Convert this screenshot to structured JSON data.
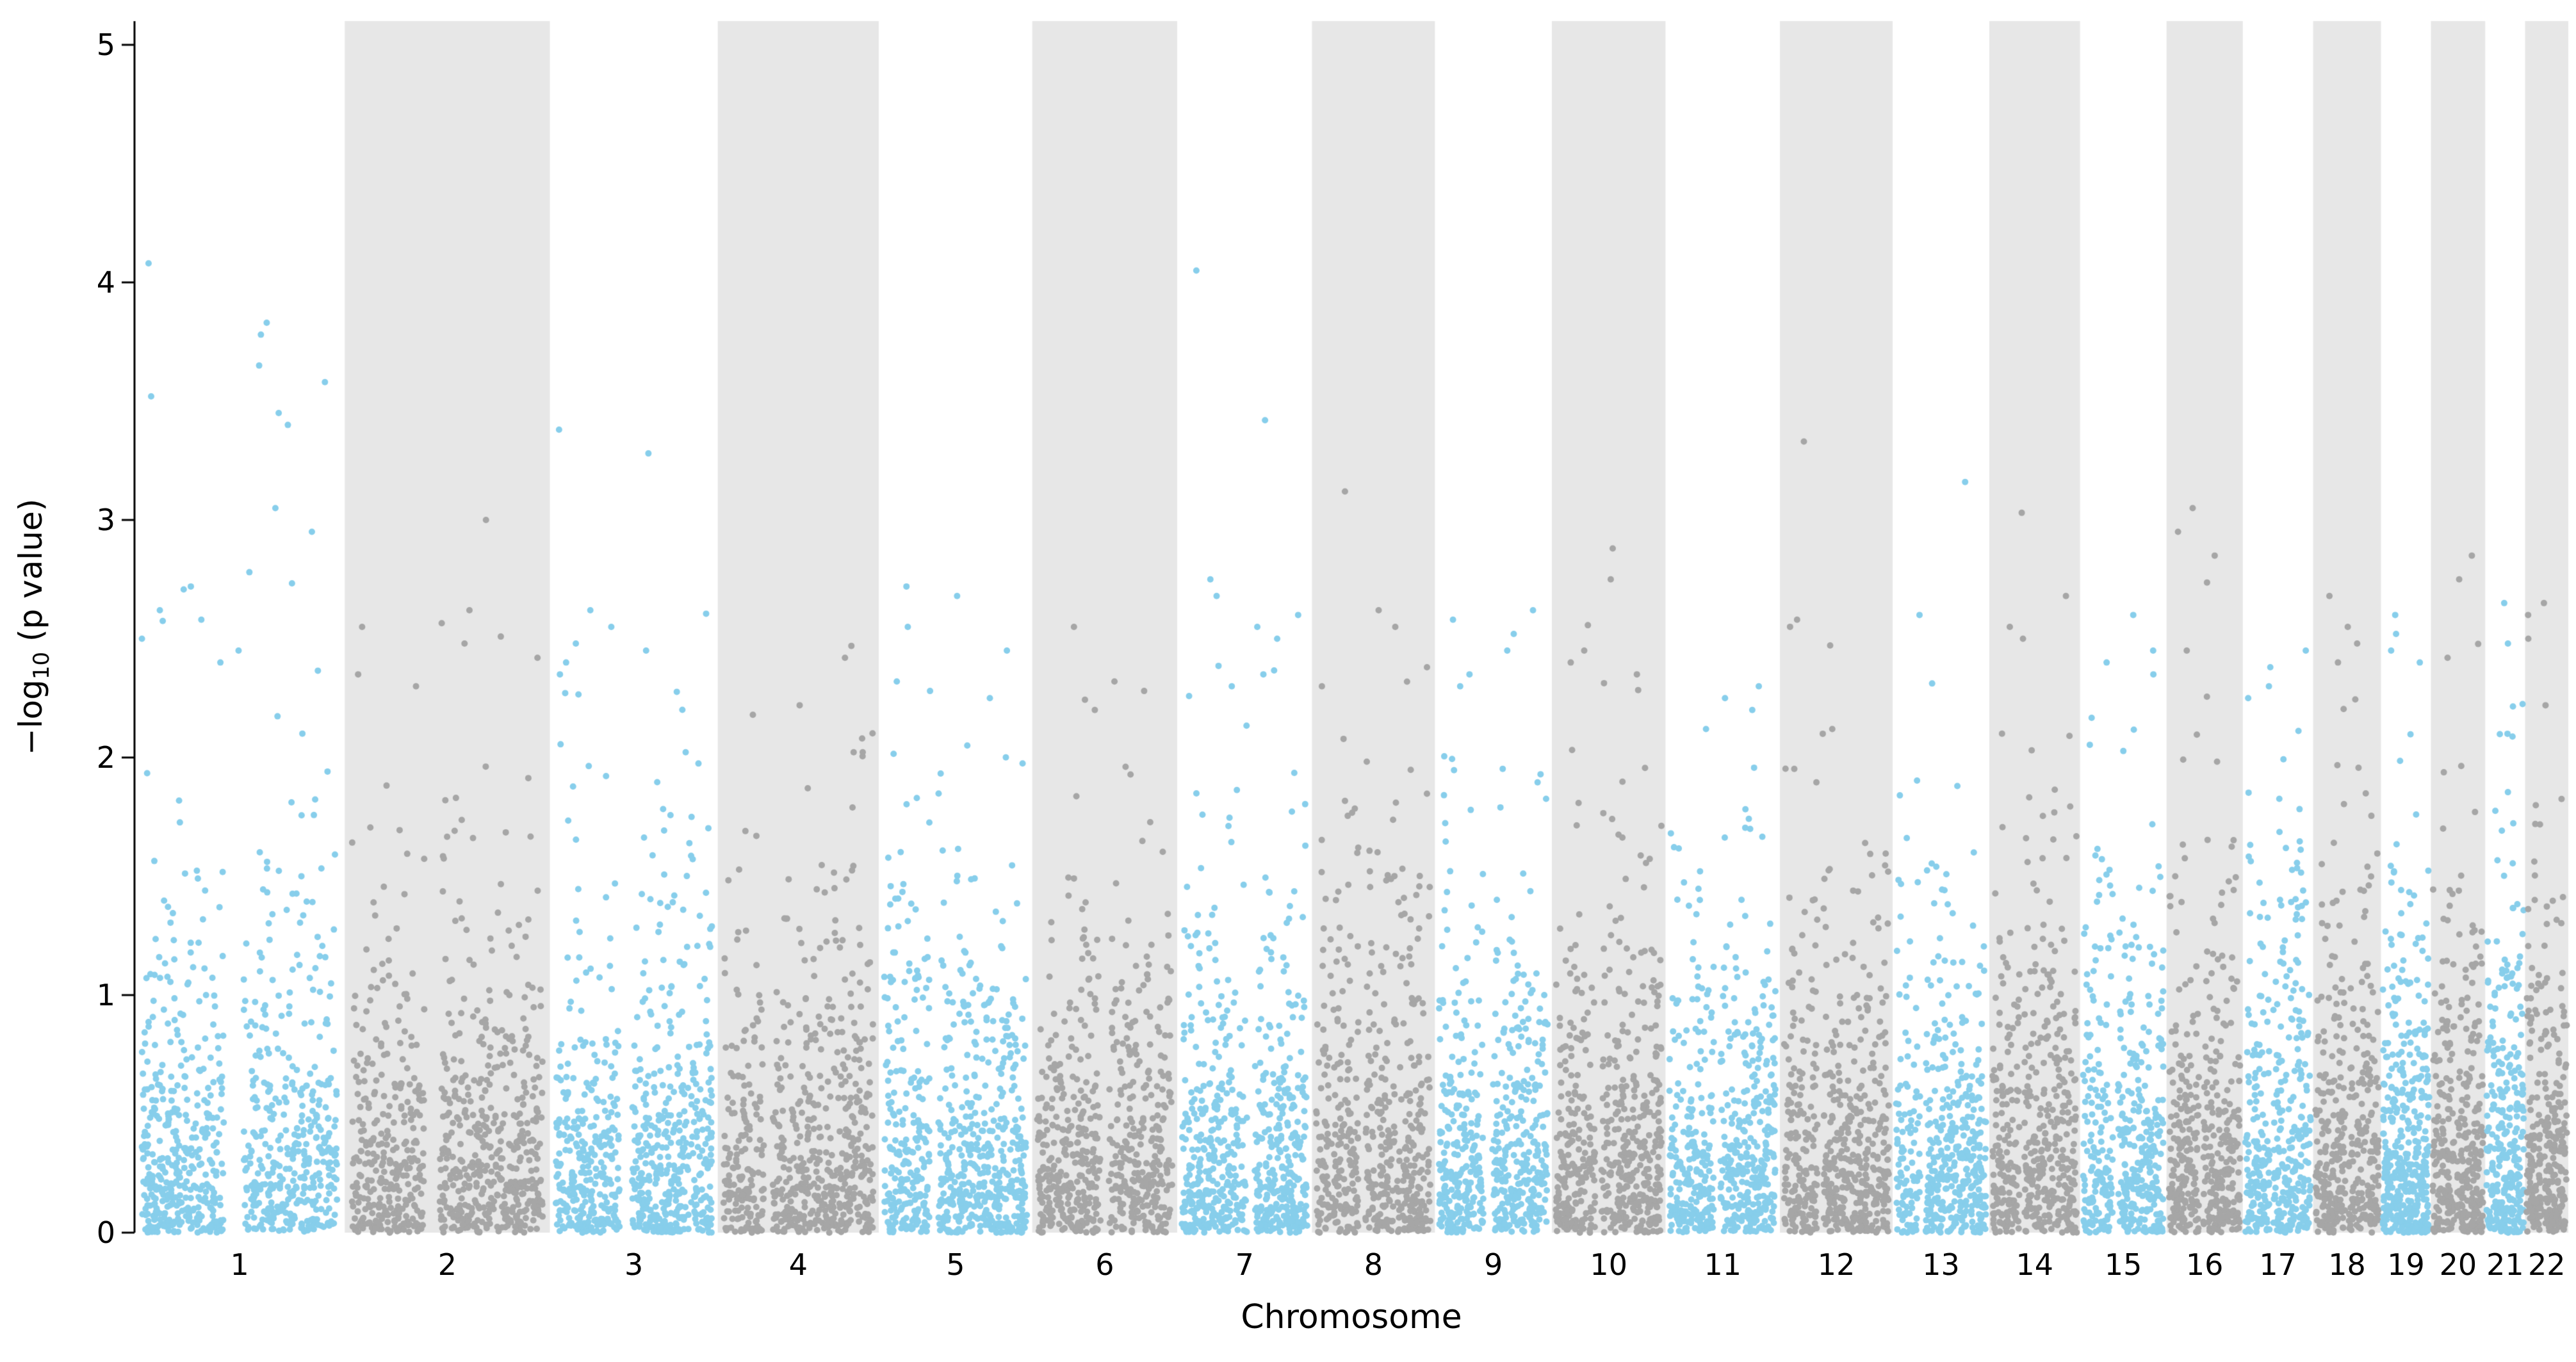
{
  "chart_data": {
    "type": "scatter",
    "variant": "manhattan",
    "title": "",
    "xlabel": "Chromosome",
    "ylabel": "−log10 (p value)",
    "ylabel_parts": {
      "pre": "−log",
      "sub": "10",
      "post": " (p value)"
    },
    "ylim": [
      0,
      5.1
    ],
    "yticks": [
      "0",
      "1",
      "2",
      "3",
      "4",
      "5"
    ],
    "grid": false,
    "legend": "none",
    "colors": {
      "odd_chromosome_points": "#87CEEB",
      "even_chromosome_points": "#a6a6a6",
      "even_chromosome_band": "#e7e7e7",
      "axis": "#000000",
      "background": "#ffffff"
    },
    "point_radius": 5,
    "chromosomes": [
      {
        "label": "1",
        "rel_width": 248,
        "n_points": 900,
        "max": 4.08,
        "peaks": [
          4.08,
          3.83,
          3.78,
          3.65,
          3.58,
          3.52,
          3.45,
          3.4,
          3.05,
          2.95,
          2.78,
          2.72,
          2.62,
          2.58,
          2.5,
          2.45,
          2.4
        ],
        "gap": [
          0.47,
          0.05
        ]
      },
      {
        "label": "2",
        "rel_width": 242,
        "n_points": 850,
        "max": 3.0,
        "peaks": [
          3.0,
          2.62,
          2.55,
          2.48,
          2.42,
          2.35,
          2.3
        ],
        "gap": [
          0.42,
          0.04
        ]
      },
      {
        "label": "3",
        "rel_width": 198,
        "n_points": 800,
        "max": 3.38,
        "peaks": [
          3.38,
          3.28,
          2.62,
          2.55,
          2.48,
          2.45,
          2.4,
          2.35
        ],
        "gap": [
          0.45,
          0.04
        ]
      },
      {
        "label": "4",
        "rel_width": 190,
        "n_points": 680,
        "max": 2.47,
        "peaks": [
          2.47,
          2.42,
          2.22,
          2.18
        ],
        "gap": [
          0.3,
          0.03
        ]
      },
      {
        "label": "5",
        "rel_width": 181,
        "n_points": 750,
        "max": 2.72,
        "peaks": [
          2.72,
          2.68,
          2.55,
          2.45,
          2.32,
          2.28,
          2.25
        ],
        "gap": [
          0.35,
          0.03
        ]
      },
      {
        "label": "6",
        "rel_width": 171,
        "n_points": 650,
        "max": 2.55,
        "peaks": [
          2.55,
          2.32,
          2.28,
          2.2
        ],
        "gap": [
          0.5,
          0.03
        ]
      },
      {
        "label": "7",
        "rel_width": 159,
        "n_points": 700,
        "max": 4.05,
        "peaks": [
          4.05,
          3.42,
          2.75,
          2.68,
          2.6,
          2.55,
          2.5,
          2.35,
          2.3
        ],
        "gap": [
          0.55,
          0.03
        ]
      },
      {
        "label": "8",
        "rel_width": 145,
        "n_points": 600,
        "max": 3.12,
        "peaks": [
          3.12,
          2.62,
          2.55,
          2.38,
          2.3
        ],
        "gap": [
          0.4,
          0.03
        ]
      },
      {
        "label": "9",
        "rel_width": 138,
        "n_points": 620,
        "max": 2.62,
        "peaks": [
          2.62,
          2.58,
          2.52,
          2.45,
          2.35,
          2.3
        ],
        "gap": [
          0.45,
          0.04
        ]
      },
      {
        "label": "10",
        "rel_width": 134,
        "n_points": 600,
        "max": 2.88,
        "peaks": [
          2.88,
          2.75,
          2.45,
          2.4,
          2.35
        ],
        "gap": [
          0.4,
          0.03
        ]
      },
      {
        "label": "11",
        "rel_width": 135,
        "n_points": 600,
        "max": 2.3,
        "peaks": [
          2.3,
          2.25,
          2.2,
          2.12
        ],
        "gap": [
          0.45,
          0.03
        ]
      },
      {
        "label": "12",
        "rel_width": 133,
        "n_points": 580,
        "max": 3.33,
        "peaks": [
          3.33,
          2.58,
          2.12,
          2.1
        ],
        "gap": [
          0.35,
          0.03
        ]
      },
      {
        "label": "13",
        "rel_width": 114,
        "n_points": 520,
        "max": 3.16,
        "peaks": [
          3.16,
          2.6,
          1.88
        ],
        "gap": [
          0.3,
          0.03
        ]
      },
      {
        "label": "14",
        "rel_width": 107,
        "n_points": 500,
        "max": 3.03,
        "peaks": [
          3.03,
          2.68,
          2.55,
          2.5
        ],
        "gap": [
          0.35,
          0.03
        ]
      },
      {
        "label": "15",
        "rel_width": 102,
        "n_points": 480,
        "max": 2.6,
        "peaks": [
          2.6,
          2.45,
          2.4,
          2.35
        ],
        "gap": [
          0.4,
          0.03
        ]
      },
      {
        "label": "16",
        "rel_width": 90,
        "n_points": 450,
        "max": 3.05,
        "peaks": [
          3.05,
          2.95,
          2.85,
          2.45
        ],
        "gap": [
          0.45,
          0.03
        ]
      },
      {
        "label": "17",
        "rel_width": 83,
        "n_points": 430,
        "max": 2.45,
        "peaks": [
          2.45,
          2.38,
          2.3,
          2.25
        ],
        "gap": [
          0.4,
          0.03
        ]
      },
      {
        "label": "18",
        "rel_width": 80,
        "n_points": 400,
        "max": 2.68,
        "peaks": [
          2.68,
          2.55,
          2.48,
          2.4
        ],
        "gap": [
          0.5,
          0.03
        ]
      },
      {
        "label": "19",
        "rel_width": 59,
        "n_points": 420,
        "max": 2.6,
        "peaks": [
          2.6,
          2.52,
          2.45,
          2.4
        ],
        "gap": [
          0,
          0
        ]
      },
      {
        "label": "20",
        "rel_width": 64,
        "n_points": 380,
        "max": 2.85,
        "peaks": [
          2.85,
          2.75,
          2.42
        ],
        "gap": [
          0.45,
          0.03
        ]
      },
      {
        "label": "21",
        "rel_width": 47,
        "n_points": 300,
        "max": 2.65,
        "peaks": [
          2.65,
          2.48,
          2.1
        ],
        "gap": [
          0,
          0
        ]
      },
      {
        "label": "22",
        "rel_width": 51,
        "n_points": 320,
        "max": 2.65,
        "peaks": [
          2.65,
          2.6,
          2.5,
          2.22
        ],
        "gap": [
          0.4,
          0.03
        ]
      }
    ]
  }
}
